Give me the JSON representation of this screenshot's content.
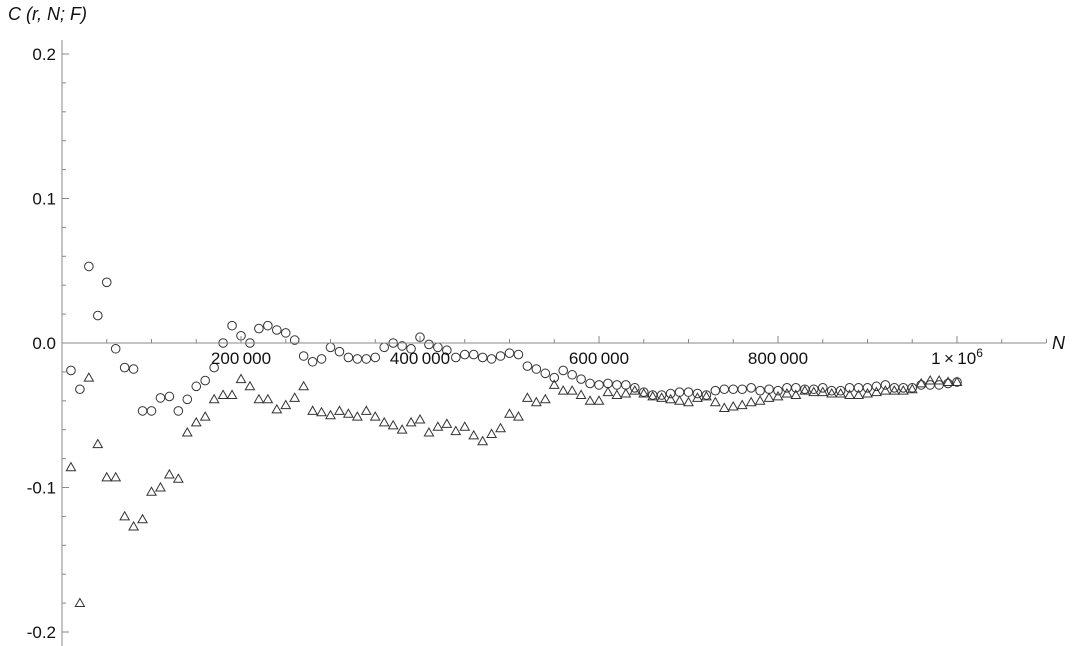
{
  "chart_data": {
    "type": "scatter",
    "ylabel": "C (r,  N;  F)",
    "xlabel": "N",
    "xlim": [
      0,
      1100000
    ],
    "ylim": [
      -0.2,
      0.2
    ],
    "x_ticks": [
      {
        "value": 200000,
        "label": "200 000"
      },
      {
        "value": 400000,
        "label": "400 000"
      },
      {
        "value": 600000,
        "label": "600 000"
      },
      {
        "value": 800000,
        "label": "800 000"
      },
      {
        "value": 1000000,
        "label": "1 × 10",
        "sup": "6"
      }
    ],
    "y_ticks": [
      {
        "value": 0.2,
        "label": "0.2"
      },
      {
        "value": 0.1,
        "label": "0.1"
      },
      {
        "value": 0.0,
        "label": "0.0"
      },
      {
        "value": -0.1,
        "label": "-0.1"
      },
      {
        "value": -0.2,
        "label": "-0.2"
      }
    ],
    "series": [
      {
        "marker": "circle",
        "points": [
          [
            10000,
            -0.019
          ],
          [
            20000,
            -0.032
          ],
          [
            30000,
            0.053
          ],
          [
            40000,
            0.019
          ],
          [
            50000,
            0.042
          ],
          [
            60000,
            -0.004
          ],
          [
            70000,
            -0.017
          ],
          [
            80000,
            -0.018
          ],
          [
            90000,
            -0.047
          ],
          [
            100000,
            -0.047
          ],
          [
            110000,
            -0.038
          ],
          [
            120000,
            -0.037
          ],
          [
            130000,
            -0.047
          ],
          [
            140000,
            -0.039
          ],
          [
            150000,
            -0.03
          ],
          [
            160000,
            -0.026
          ],
          [
            170000,
            -0.017
          ],
          [
            180000,
            0.0
          ],
          [
            190000,
            0.012
          ],
          [
            200000,
            0.005
          ],
          [
            210000,
            0.0
          ],
          [
            220000,
            0.01
          ],
          [
            230000,
            0.012
          ],
          [
            240000,
            0.009
          ],
          [
            250000,
            0.007
          ],
          [
            260000,
            0.002
          ],
          [
            270000,
            -0.009
          ],
          [
            280000,
            -0.013
          ],
          [
            290000,
            -0.011
          ],
          [
            300000,
            -0.003
          ],
          [
            310000,
            -0.006
          ],
          [
            320000,
            -0.01
          ],
          [
            330000,
            -0.011
          ],
          [
            340000,
            -0.011
          ],
          [
            350000,
            -0.01
          ],
          [
            360000,
            -0.003
          ],
          [
            370000,
            0.0
          ],
          [
            380000,
            -0.002
          ],
          [
            390000,
            -0.004
          ],
          [
            400000,
            0.004
          ],
          [
            410000,
            -0.001
          ],
          [
            420000,
            -0.003
          ],
          [
            430000,
            -0.005
          ],
          [
            440000,
            -0.01
          ],
          [
            450000,
            -0.008
          ],
          [
            460000,
            -0.008
          ],
          [
            470000,
            -0.01
          ],
          [
            480000,
            -0.011
          ],
          [
            490000,
            -0.009
          ],
          [
            500000,
            -0.007
          ],
          [
            510000,
            -0.008
          ],
          [
            520000,
            -0.016
          ],
          [
            530000,
            -0.018
          ],
          [
            540000,
            -0.021
          ],
          [
            550000,
            -0.024
          ],
          [
            560000,
            -0.019
          ],
          [
            570000,
            -0.022
          ],
          [
            580000,
            -0.025
          ],
          [
            590000,
            -0.028
          ],
          [
            600000,
            -0.029
          ],
          [
            610000,
            -0.028
          ],
          [
            620000,
            -0.029
          ],
          [
            630000,
            -0.029
          ],
          [
            640000,
            -0.031
          ],
          [
            650000,
            -0.034
          ],
          [
            660000,
            -0.036
          ],
          [
            670000,
            -0.036
          ],
          [
            680000,
            -0.035
          ],
          [
            690000,
            -0.034
          ],
          [
            700000,
            -0.034
          ],
          [
            710000,
            -0.035
          ],
          [
            720000,
            -0.036
          ],
          [
            730000,
            -0.033
          ],
          [
            740000,
            -0.032
          ],
          [
            750000,
            -0.032
          ],
          [
            760000,
            -0.032
          ],
          [
            770000,
            -0.031
          ],
          [
            780000,
            -0.033
          ],
          [
            790000,
            -0.032
          ],
          [
            800000,
            -0.033
          ],
          [
            810000,
            -0.031
          ],
          [
            820000,
            -0.031
          ],
          [
            830000,
            -0.032
          ],
          [
            840000,
            -0.032
          ],
          [
            850000,
            -0.031
          ],
          [
            860000,
            -0.033
          ],
          [
            870000,
            -0.033
          ],
          [
            880000,
            -0.031
          ],
          [
            890000,
            -0.031
          ],
          [
            900000,
            -0.031
          ],
          [
            910000,
            -0.03
          ],
          [
            920000,
            -0.029
          ],
          [
            930000,
            -0.031
          ],
          [
            940000,
            -0.031
          ],
          [
            950000,
            -0.031
          ],
          [
            960000,
            -0.029
          ],
          [
            970000,
            -0.029
          ],
          [
            980000,
            -0.029
          ],
          [
            990000,
            -0.028
          ],
          [
            1000000,
            -0.027
          ]
        ]
      },
      {
        "marker": "triangle",
        "points": [
          [
            10000,
            -0.086
          ],
          [
            20000,
            -0.18
          ],
          [
            30000,
            -0.024
          ],
          [
            40000,
            -0.07
          ],
          [
            50000,
            -0.093
          ],
          [
            60000,
            -0.093
          ],
          [
            70000,
            -0.12
          ],
          [
            80000,
            -0.127
          ],
          [
            90000,
            -0.122
          ],
          [
            100000,
            -0.103
          ],
          [
            110000,
            -0.1
          ],
          [
            120000,
            -0.091
          ],
          [
            130000,
            -0.094
          ],
          [
            140000,
            -0.062
          ],
          [
            150000,
            -0.055
          ],
          [
            160000,
            -0.051
          ],
          [
            170000,
            -0.039
          ],
          [
            180000,
            -0.036
          ],
          [
            190000,
            -0.036
          ],
          [
            200000,
            -0.025
          ],
          [
            210000,
            -0.03
          ],
          [
            220000,
            -0.039
          ],
          [
            230000,
            -0.039
          ],
          [
            240000,
            -0.046
          ],
          [
            250000,
            -0.043
          ],
          [
            260000,
            -0.038
          ],
          [
            270000,
            -0.03
          ],
          [
            280000,
            -0.047
          ],
          [
            290000,
            -0.048
          ],
          [
            300000,
            -0.05
          ],
          [
            310000,
            -0.047
          ],
          [
            320000,
            -0.049
          ],
          [
            330000,
            -0.051
          ],
          [
            340000,
            -0.047
          ],
          [
            350000,
            -0.051
          ],
          [
            360000,
            -0.055
          ],
          [
            370000,
            -0.057
          ],
          [
            380000,
            -0.06
          ],
          [
            390000,
            -0.055
          ],
          [
            400000,
            -0.053
          ],
          [
            410000,
            -0.062
          ],
          [
            420000,
            -0.058
          ],
          [
            430000,
            -0.056
          ],
          [
            440000,
            -0.061
          ],
          [
            450000,
            -0.058
          ],
          [
            460000,
            -0.064
          ],
          [
            470000,
            -0.068
          ],
          [
            480000,
            -0.063
          ],
          [
            490000,
            -0.059
          ],
          [
            500000,
            -0.049
          ],
          [
            510000,
            -0.051
          ],
          [
            520000,
            -0.038
          ],
          [
            530000,
            -0.041
          ],
          [
            540000,
            -0.039
          ],
          [
            550000,
            -0.029
          ],
          [
            560000,
            -0.033
          ],
          [
            570000,
            -0.033
          ],
          [
            580000,
            -0.036
          ],
          [
            590000,
            -0.04
          ],
          [
            600000,
            -0.04
          ],
          [
            610000,
            -0.034
          ],
          [
            620000,
            -0.036
          ],
          [
            630000,
            -0.035
          ],
          [
            640000,
            -0.033
          ],
          [
            650000,
            -0.035
          ],
          [
            660000,
            -0.037
          ],
          [
            670000,
            -0.038
          ],
          [
            680000,
            -0.039
          ],
          [
            690000,
            -0.04
          ],
          [
            700000,
            -0.041
          ],
          [
            710000,
            -0.038
          ],
          [
            720000,
            -0.037
          ],
          [
            730000,
            -0.041
          ],
          [
            740000,
            -0.045
          ],
          [
            750000,
            -0.044
          ],
          [
            760000,
            -0.043
          ],
          [
            770000,
            -0.041
          ],
          [
            780000,
            -0.04
          ],
          [
            790000,
            -0.038
          ],
          [
            800000,
            -0.037
          ],
          [
            810000,
            -0.035
          ],
          [
            820000,
            -0.036
          ],
          [
            830000,
            -0.033
          ],
          [
            840000,
            -0.034
          ],
          [
            850000,
            -0.034
          ],
          [
            860000,
            -0.035
          ],
          [
            870000,
            -0.035
          ],
          [
            880000,
            -0.036
          ],
          [
            890000,
            -0.036
          ],
          [
            900000,
            -0.035
          ],
          [
            910000,
            -0.034
          ],
          [
            920000,
            -0.033
          ],
          [
            930000,
            -0.033
          ],
          [
            940000,
            -0.033
          ],
          [
            950000,
            -0.032
          ],
          [
            960000,
            -0.028
          ],
          [
            970000,
            -0.026
          ],
          [
            980000,
            -0.026
          ],
          [
            990000,
            -0.027
          ],
          [
            1000000,
            -0.027
          ]
        ]
      }
    ]
  }
}
